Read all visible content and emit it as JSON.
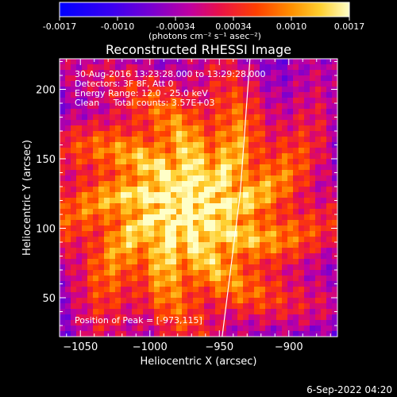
{
  "colorbar": {
    "ticks": [
      "-0.0017",
      "-0.0010",
      "-0.00034",
      "0.00034",
      "0.0010",
      "0.0017"
    ],
    "units": "(photons cm⁻² s⁻¹ asec⁻²)"
  },
  "chart_data": {
    "type": "heatmap",
    "title": "Reconstructed RHESSI Image",
    "xlabel": "Heliocentric X (arcsec)",
    "ylabel": "Heliocentric Y (arcsec)",
    "xlim": [
      -1065,
      -865
    ],
    "ylim": [
      22,
      222
    ],
    "x_ticks": [
      -1050,
      -1000,
      -950,
      -900
    ],
    "x_tick_labels": [
      "−1050",
      "−1000",
      "−950",
      "−900"
    ],
    "y_ticks": [
      50,
      100,
      150,
      200
    ],
    "y_tick_labels": [
      "50",
      "100",
      "150",
      "200"
    ],
    "zlim": [
      -0.0017,
      0.0017
    ],
    "peak": {
      "x": -973,
      "y": 115
    },
    "limb_line": [
      [
        -948,
        22
      ],
      [
        -935,
        125
      ],
      [
        -928,
        222
      ]
    ],
    "annotations": [
      "30-Aug-2016 13:23:28.000 to 13:29:28.000",
      "Detectors: 3F 8F, Att 0",
      "Energy Range: 12.0 - 25.0 keV",
      "Clean     Total counts: 3.57E+03"
    ],
    "peak_label": "Position of Peak = [-973,115]"
  },
  "footer": {
    "date": "6-Sep-2022 04:20"
  }
}
